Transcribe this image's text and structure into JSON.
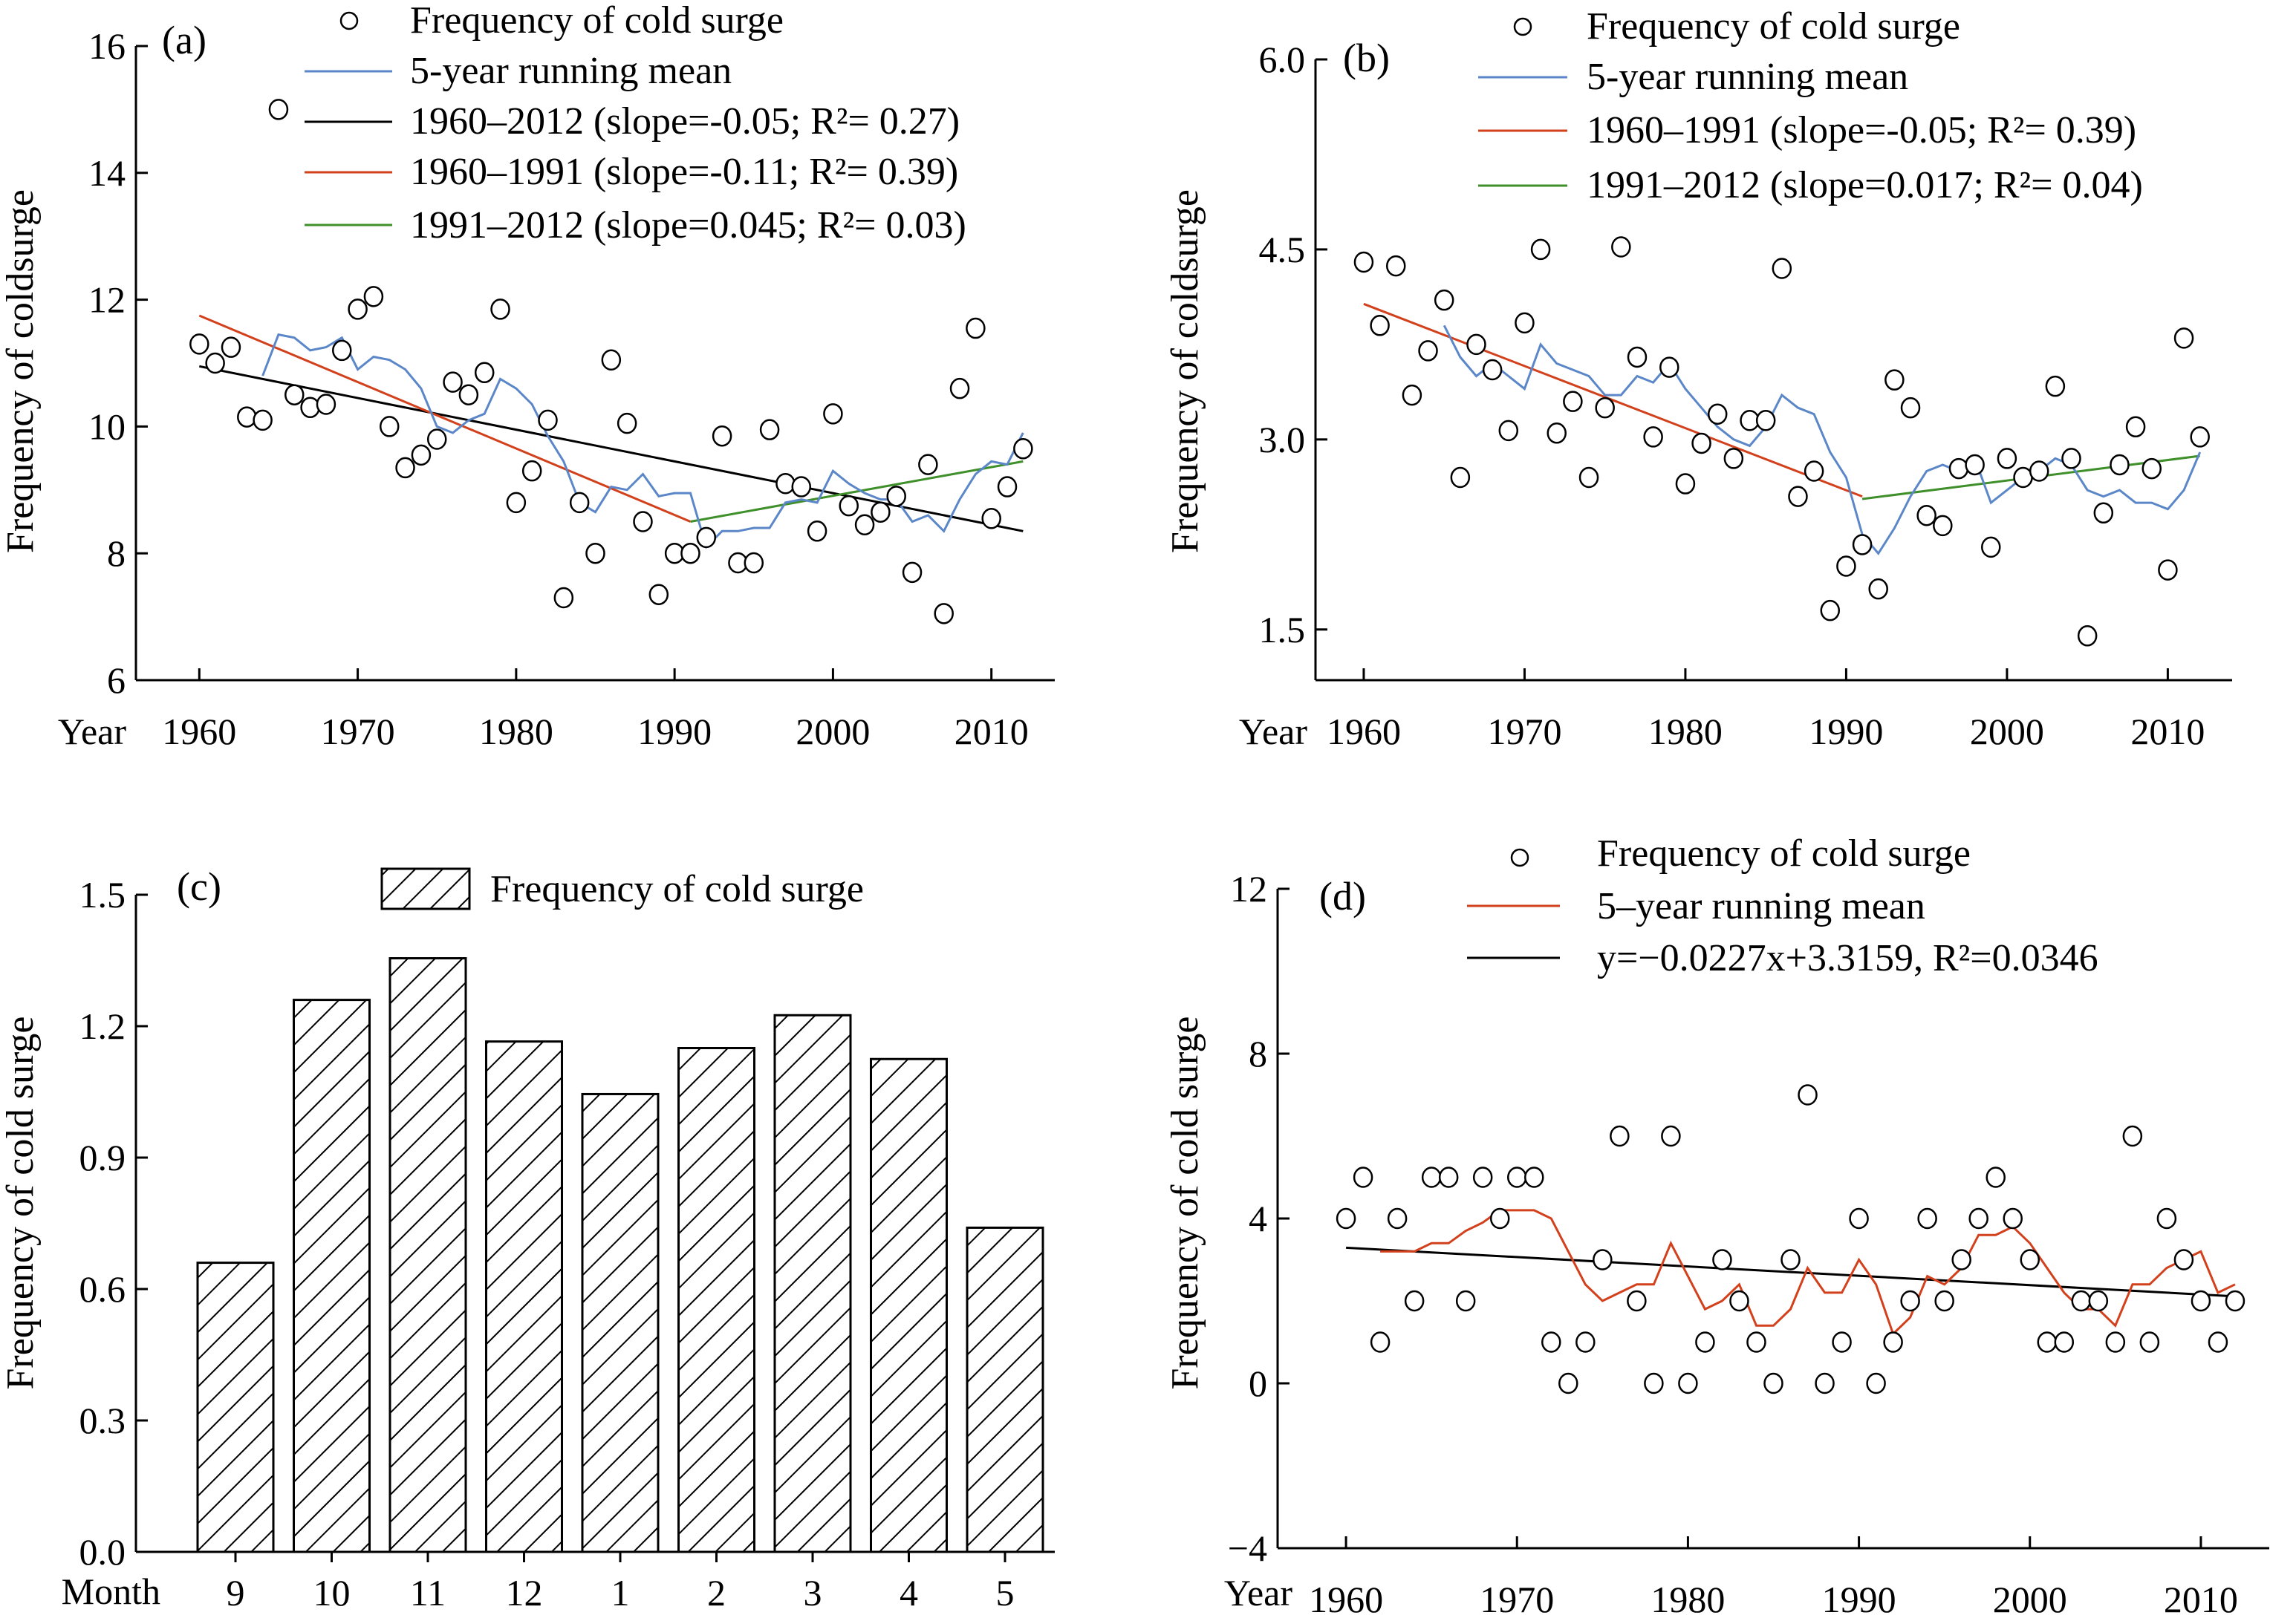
{
  "colors": {
    "dots": "#000000",
    "running_mean_blue": "#5b87c8",
    "running_mean_red": "#d2401c",
    "trend_black": "#000000",
    "trend_red": "#d2401c",
    "trend_green": "#3f8f2a",
    "bar_hatch": "#000000"
  },
  "chart_data": [
    {
      "id": "a",
      "type": "scatter",
      "panel_label": "(a)",
      "ylabel": "Frequency of coldsurge",
      "xlabel": "Year",
      "xlim": [
        1956,
        2014
      ],
      "ylim": [
        6,
        16
      ],
      "xticks": [
        1960,
        1970,
        1980,
        1990,
        2000,
        2010
      ],
      "yticks": [
        6,
        8,
        10,
        12,
        14,
        16
      ],
      "grid": false,
      "legend": "top-right",
      "legend_entries": [
        "Frequency of cold surge",
        "5-year running mean",
        "1960–2012 (slope=-0.05; R²= 0.27)",
        "1960–1991 (slope=-0.11; R²= 0.39)",
        "1991–2012 (slope=0.045; R²= 0.03)"
      ],
      "points": {
        "x": [
          1960,
          1961,
          1962,
          1963,
          1964,
          1965,
          1966,
          1967,
          1968,
          1969,
          1970,
          1971,
          1972,
          1973,
          1974,
          1975,
          1976,
          1977,
          1978,
          1979,
          1980,
          1981,
          1982,
          1983,
          1984,
          1985,
          1986,
          1987,
          1988,
          1989,
          1990,
          1991,
          1992,
          1993,
          1994,
          1995,
          1996,
          1997,
          1998,
          1999,
          2000,
          2001,
          2002,
          2003,
          2004,
          2005,
          2006,
          2007,
          2008,
          2009,
          2010,
          2011,
          2012
        ],
        "y": [
          11.3,
          11.0,
          11.25,
          10.15,
          10.1,
          15.0,
          10.5,
          10.3,
          10.35,
          11.2,
          11.85,
          12.05,
          10.0,
          9.35,
          9.55,
          9.8,
          10.7,
          10.5,
          10.85,
          11.85,
          8.8,
          9.3,
          10.1,
          7.3,
          8.8,
          8.0,
          11.05,
          10.05,
          8.5,
          7.35,
          8.0,
          8.0,
          8.25,
          9.85,
          7.85,
          7.85,
          9.95,
          9.1,
          9.05,
          8.35,
          10.2,
          8.75,
          8.45,
          8.65,
          8.9,
          7.7,
          9.4,
          7.05,
          10.6,
          11.55,
          8.55,
          9.05,
          9.65
        ]
      },
      "running_mean": {
        "x": [
          1964,
          1965,
          1966,
          1967,
          1968,
          1969,
          1970,
          1971,
          1972,
          1973,
          1974,
          1975,
          1976,
          1977,
          1978,
          1979,
          1980,
          1981,
          1982,
          1983,
          1984,
          1985,
          1986,
          1987,
          1988,
          1989,
          1990,
          1991,
          1992,
          1993,
          1994,
          1995,
          1996,
          1997,
          1998,
          1999,
          2000,
          2001,
          2002,
          2003,
          2004,
          2005,
          2006,
          2007,
          2008,
          2009,
          2010,
          2011,
          2012
        ],
        "y": [
          10.8,
          11.45,
          11.4,
          11.2,
          11.25,
          11.4,
          10.9,
          11.1,
          11.05,
          10.9,
          10.6,
          10.0,
          9.9,
          10.1,
          10.2,
          10.75,
          10.6,
          10.35,
          9.85,
          9.45,
          8.8,
          8.65,
          9.05,
          9.0,
          9.25,
          8.9,
          8.95,
          8.95,
          8.1,
          8.35,
          8.35,
          8.4,
          8.4,
          8.8,
          8.85,
          8.8,
          9.3,
          9.1,
          8.95,
          8.85,
          8.85,
          8.5,
          8.6,
          8.35,
          8.85,
          9.25,
          9.45,
          9.4,
          9.9
        ]
      },
      "trends": [
        {
          "name": "1960–2012 (slope=-0.05; R²= 0.27)",
          "color": "#000000",
          "x": [
            1960,
            2012
          ],
          "y": [
            10.95,
            8.35
          ]
        },
        {
          "name": "1960–1991 (slope=-0.11; R²= 0.39)",
          "color": "#d2401c",
          "x": [
            1960,
            1991
          ],
          "y": [
            11.75,
            8.5
          ]
        },
        {
          "name": "1991–2012 (slope=0.045; R²= 0.03)",
          "color": "#3f8f2a",
          "x": [
            1991,
            2012
          ],
          "y": [
            8.5,
            9.45
          ]
        }
      ]
    },
    {
      "id": "b",
      "type": "scatter",
      "panel_label": "(b)",
      "ylabel": "Frequency of coldsurge",
      "xlabel": "Year",
      "xlim": [
        1957,
        2014
      ],
      "ylim": [
        1.1,
        6.0
      ],
      "xticks": [
        1960,
        1970,
        1980,
        1990,
        2000,
        2010
      ],
      "yticks": [
        1.5,
        3.0,
        4.5,
        6.0
      ],
      "grid": false,
      "legend": "top-right",
      "legend_entries": [
        "Frequency of cold surge",
        "5-year running mean",
        "1960–1991 (slope=-0.05; R²= 0.39)",
        "1991–2012 (slope=0.017; R²= 0.04)"
      ],
      "points": {
        "x": [
          1960,
          1961,
          1962,
          1963,
          1964,
          1965,
          1966,
          1967,
          1968,
          1969,
          1970,
          1971,
          1972,
          1973,
          1974,
          1975,
          1976,
          1977,
          1978,
          1979,
          1980,
          1981,
          1982,
          1983,
          1984,
          1985,
          1986,
          1987,
          1988,
          1989,
          1990,
          1991,
          1992,
          1993,
          1994,
          1995,
          1996,
          1997,
          1998,
          1999,
          2000,
          2001,
          2002,
          2003,
          2004,
          2005,
          2006,
          2007,
          2008,
          2009,
          2010,
          2011,
          2012
        ],
        "y": [
          4.4,
          3.9,
          4.37,
          3.35,
          3.7,
          4.1,
          2.7,
          3.75,
          3.55,
          3.07,
          3.92,
          4.5,
          3.05,
          3.3,
          2.7,
          3.25,
          4.52,
          3.65,
          3.02,
          3.57,
          2.65,
          2.97,
          3.2,
          2.85,
          3.15,
          3.15,
          4.35,
          2.55,
          2.75,
          1.65,
          2.0,
          2.17,
          1.82,
          3.47,
          3.25,
          2.4,
          2.32,
          2.77,
          2.8,
          2.15,
          2.85,
          2.7,
          2.75,
          3.42,
          2.85,
          1.45,
          2.42,
          2.8,
          3.1,
          2.77,
          1.97,
          3.8,
          3.02
        ]
      },
      "running_mean": {
        "x": [
          1965,
          1966,
          1967,
          1968,
          1969,
          1970,
          1971,
          1972,
          1973,
          1974,
          1975,
          1976,
          1977,
          1978,
          1979,
          1980,
          1981,
          1982,
          1983,
          1984,
          1985,
          1986,
          1987,
          1988,
          1989,
          1990,
          1991,
          1992,
          1993,
          1994,
          1995,
          1996,
          1997,
          1998,
          1999,
          2000,
          2001,
          2002,
          2003,
          2004,
          2005,
          2006,
          2007,
          2008,
          2009,
          2010,
          2011,
          2012
        ],
        "y": [
          3.9,
          3.65,
          3.5,
          3.6,
          3.5,
          3.4,
          3.75,
          3.6,
          3.55,
          3.5,
          3.35,
          3.35,
          3.5,
          3.45,
          3.6,
          3.4,
          3.25,
          3.1,
          3.0,
          2.95,
          3.1,
          3.35,
          3.25,
          3.2,
          2.9,
          2.7,
          2.25,
          2.1,
          2.3,
          2.55,
          2.75,
          2.8,
          2.75,
          2.85,
          2.5,
          2.6,
          2.7,
          2.75,
          2.85,
          2.8,
          2.6,
          2.55,
          2.6,
          2.5,
          2.5,
          2.45,
          2.6,
          2.9
        ]
      },
      "trends": [
        {
          "name": "1960–1991 (slope=-0.05; R²= 0.39)",
          "color": "#d2401c",
          "x": [
            1960,
            1991
          ],
          "y": [
            4.07,
            2.55
          ]
        },
        {
          "name": "1991–2012 (slope=0.017; R²= 0.04)",
          "color": "#3f8f2a",
          "x": [
            1991,
            2012
          ],
          "y": [
            2.53,
            2.87
          ]
        }
      ]
    },
    {
      "id": "c",
      "type": "bar",
      "panel_label": "(c)",
      "ylabel": "Frequency of cold surge",
      "xlabel": "Month",
      "categories": [
        "9",
        "10",
        "11",
        "12",
        "1",
        "2",
        "3",
        "4",
        "5"
      ],
      "values": [
        0.66,
        1.26,
        1.355,
        1.165,
        1.045,
        1.15,
        1.225,
        1.125,
        0.74
      ],
      "ylim": [
        0,
        1.5
      ],
      "yticks": [
        0.0,
        0.3,
        0.6,
        0.9,
        1.2,
        1.5
      ],
      "grid": false,
      "legend": "top-right",
      "legend_entries": [
        "Frequency of cold surge"
      ]
    },
    {
      "id": "d",
      "type": "scatter",
      "panel_label": "(d)",
      "ylabel": "Frequency of cold surge",
      "xlabel": "Year",
      "xlim": [
        1956,
        2014
      ],
      "ylim": [
        -4,
        12
      ],
      "xticks": [
        1960,
        1970,
        1980,
        1990,
        2000,
        2010
      ],
      "yticks": [
        -4,
        0,
        4,
        8,
        12
      ],
      "grid": false,
      "legend": "top-right",
      "legend_entries": [
        "Frequency of cold surge",
        "5–year running mean",
        "y=−0.0227x+3.3159, R²=0.0346"
      ],
      "points": {
        "x": [
          1960,
          1961,
          1962,
          1963,
          1964,
          1965,
          1966,
          1967,
          1968,
          1969,
          1970,
          1971,
          1972,
          1973,
          1974,
          1975,
          1976,
          1977,
          1978,
          1979,
          1980,
          1981,
          1982,
          1983,
          1984,
          1985,
          1986,
          1987,
          1988,
          1989,
          1990,
          1991,
          1992,
          1993,
          1994,
          1995,
          1996,
          1997,
          1998,
          1999,
          2000,
          2001,
          2002,
          2003,
          2004,
          2005,
          2006,
          2007,
          2008,
          2009,
          2010,
          2011,
          2012
        ],
        "y": [
          4,
          5,
          1,
          4,
          2,
          5,
          5,
          2,
          5,
          4,
          5,
          5,
          1,
          0,
          1,
          3,
          6,
          2,
          0,
          6,
          0,
          1,
          3,
          2,
          1,
          0,
          3,
          7,
          0,
          1,
          4,
          0,
          1,
          2,
          4,
          2,
          3,
          4,
          5,
          4,
          3,
          1,
          1,
          2,
          2,
          1,
          6,
          1,
          4,
          3,
          2,
          1,
          2
        ]
      },
      "running_mean": {
        "x": [
          1962,
          1963,
          1964,
          1965,
          1966,
          1967,
          1968,
          1969,
          1970,
          1971,
          1972,
          1973,
          1974,
          1975,
          1976,
          1977,
          1978,
          1979,
          1980,
          1981,
          1982,
          1983,
          1984,
          1985,
          1986,
          1987,
          1988,
          1989,
          1990,
          1991,
          1992,
          1993,
          1994,
          1995,
          1996,
          1997,
          1998,
          1999,
          2000,
          2001,
          2002,
          2003,
          2004,
          2005,
          2006,
          2007,
          2008,
          2009,
          2010,
          2011,
          2012
        ],
        "y": [
          3.2,
          3.2,
          3.2,
          3.4,
          3.4,
          3.7,
          3.9,
          4.2,
          4.2,
          4.2,
          4.0,
          3.2,
          2.4,
          2.0,
          2.2,
          2.4,
          2.4,
          3.4,
          2.6,
          1.8,
          2.0,
          2.4,
          1.4,
          1.4,
          1.8,
          2.8,
          2.2,
          2.2,
          3.0,
          2.4,
          1.2,
          1.6,
          2.6,
          2.4,
          2.8,
          3.6,
          3.6,
          3.8,
          3.4,
          2.8,
          2.2,
          1.8,
          1.8,
          1.4,
          2.4,
          2.4,
          2.8,
          3.0,
          3.2,
          2.2,
          2.4
        ]
      },
      "trends": [
        {
          "name": "y=−0.0227x+3.3159, R²=0.0346",
          "color": "#000000",
          "x": [
            1960,
            2012
          ],
          "y": [
            3.29,
            2.11
          ]
        }
      ]
    }
  ]
}
